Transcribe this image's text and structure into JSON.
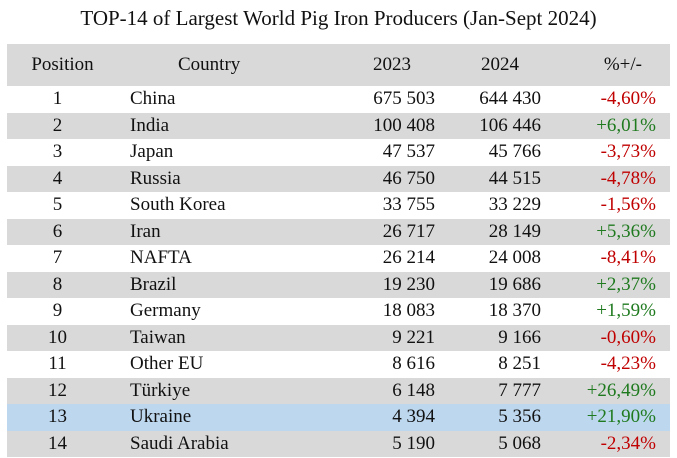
{
  "title": "TOP-14 of Largest World Pig Iron Producers (Jan-Sept 2024)",
  "headers": {
    "position": "Position",
    "country": "Country",
    "y2023": "2023",
    "y2024": "2024",
    "change": "%+/-"
  },
  "colors": {
    "negative": "#c00000",
    "positive": "#1f7a1f",
    "stripe": "#d9d9d9",
    "highlight": "#bdd7ee"
  },
  "rows": [
    {
      "position": "1",
      "country": "China",
      "y2023": "675 503",
      "y2024": "644 430",
      "change": "-4,60%",
      "trend": "down"
    },
    {
      "position": "2",
      "country": "India",
      "y2023": "100 408",
      "y2024": "106 446",
      "change": "+6,01%",
      "trend": "up"
    },
    {
      "position": "3",
      "country": "Japan",
      "y2023": "47 537",
      "y2024": "45 766",
      "change": "-3,73%",
      "trend": "down"
    },
    {
      "position": "4",
      "country": "Russia",
      "y2023": "46 750",
      "y2024": "44 515",
      "change": "-4,78%",
      "trend": "down"
    },
    {
      "position": "5",
      "country": "South Korea",
      "y2023": "33 755",
      "y2024": "33 229",
      "change": "-1,56%",
      "trend": "down"
    },
    {
      "position": "6",
      "country": "Iran",
      "y2023": "26 717",
      "y2024": "28 149",
      "change": "+5,36%",
      "trend": "up"
    },
    {
      "position": "7",
      "country": "NAFTA",
      "y2023": "26 214",
      "y2024": "24 008",
      "change": "-8,41%",
      "trend": "down"
    },
    {
      "position": "8",
      "country": "Brazil",
      "y2023": "19 230",
      "y2024": "19 686",
      "change": "+2,37%",
      "trend": "up"
    },
    {
      "position": "9",
      "country": "Germany",
      "y2023": "18 083",
      "y2024": "18 370",
      "change": "+1,59%",
      "trend": "up"
    },
    {
      "position": "10",
      "country": "Taiwan",
      "y2023": "9 221",
      "y2024": "9 166",
      "change": "-0,60%",
      "trend": "down"
    },
    {
      "position": "11",
      "country": "Other EU",
      "y2023": "8 616",
      "y2024": "8 251",
      "change": "-4,23%",
      "trend": "down"
    },
    {
      "position": "12",
      "country": "Türkiye",
      "y2023": "6 148",
      "y2024": "7 777",
      "change": "+26,49%",
      "trend": "up"
    },
    {
      "position": "13",
      "country": "Ukraine",
      "y2023": "4 394",
      "y2024": "5 356",
      "change": "+21,90%",
      "trend": "up",
      "highlight": true
    },
    {
      "position": "14",
      "country": "Saudi Arabia",
      "y2023": "5 190",
      "y2024": "5 068",
      "change": "-2,34%",
      "trend": "down"
    }
  ]
}
